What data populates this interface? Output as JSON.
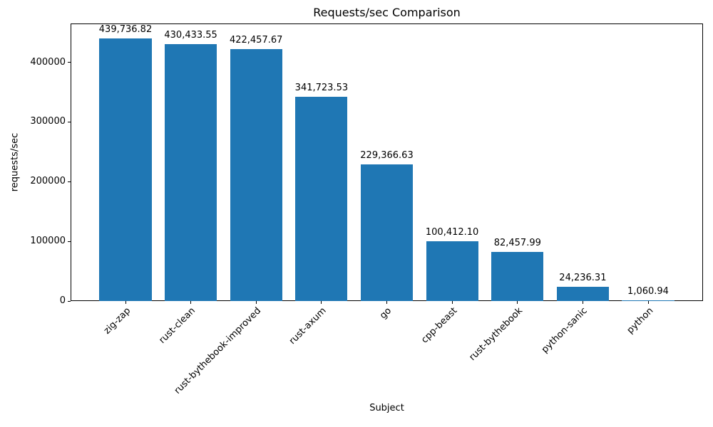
{
  "chart_data": {
    "type": "bar",
    "title": "Requests/sec Comparison",
    "xlabel": "Subject",
    "ylabel": "requests/sec",
    "categories": [
      "zig-zap",
      "rust-clean",
      "rust-bythebook-improved",
      "rust-axum",
      "go",
      "cpp-beast",
      "rust-bythebook",
      "python-sanic",
      "python"
    ],
    "values": [
      439736.82,
      430433.55,
      422457.67,
      341723.53,
      229366.63,
      100412.1,
      82457.99,
      24236.31,
      1060.94
    ],
    "value_labels": [
      "439,736.82",
      "430,433.55",
      "422,457.67",
      "341,723.53",
      "229,366.63",
      "100,412.10",
      "82,457.99",
      "24,236.31",
      "1,060.94"
    ],
    "yticks": [
      0,
      100000,
      200000,
      300000,
      400000
    ],
    "ytick_labels": [
      "0",
      "100000",
      "200000",
      "300000",
      "400000"
    ],
    "ylim": [
      0,
      465000
    ],
    "bar_color": "#1f77b4",
    "grid": false,
    "legend": false,
    "x_tick_rotation_deg": 45
  }
}
